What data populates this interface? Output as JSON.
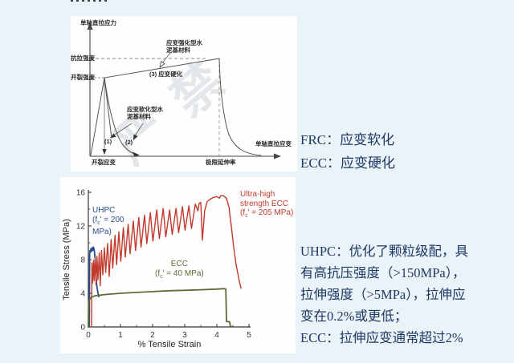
{
  "colors": {
    "background": "#e9f3f8",
    "text_navy": "#1f3864",
    "uhpc_blue": "#2a4d8f",
    "ecc_red": "#c23a2c",
    "ecc_green": "#5e6b33",
    "diagram_line": "#444444"
  },
  "top_diagram": {
    "watermark": "严禁",
    "ylabel": "单轴直拉应力",
    "xlabel": "单轴直拉应变",
    "tensile_strength_label": "抗拉强度",
    "cracking_strength_label": "开裂强度",
    "hardening_material_line1": "应变强化型水",
    "hardening_material_line2": "泥基材料",
    "hardening_label": "(3) 应变硬化",
    "softening_material_line1": "应变软化型水",
    "softening_material_line2": "泥基材料",
    "curve1_label": "(1)",
    "curve2_label": "(2)",
    "cracking_strain_label": "开裂应变",
    "ultimate_elongation_label": "极限延伸率"
  },
  "side_notes": {
    "frc": "FRC：应变软化",
    "ecc": "ECC：应变硬化"
  },
  "body_text": {
    "lines": [
      "UHPC：优化了颗粒级配，具",
      "有高抗压强度（>150MPa），",
      "拉伸强度（>5MPa），拉伸应",
      "变在0.2%或更低；",
      "ECC：拉伸应变通常超过2%"
    ]
  },
  "chart_data": [
    {
      "type": "line",
      "title": "单轴直拉应力—应变示意图（无数值刻度）",
      "xlabel": "单轴直拉应变",
      "ylabel": "单轴直拉应力",
      "annotations": [
        "抗拉强度",
        "开裂强度",
        "(3) 应变硬化",
        "应变强化型水泥基材料",
        "应变软化型水泥基材料",
        "(1)",
        "(2)",
        "开裂应变",
        "极限延伸率"
      ],
      "series": [
        {
          "name": "应变硬化型 (3)",
          "points_norm": [
            [
              0,
              0
            ],
            [
              0.07,
              0.75
            ],
            [
              0.68,
              0.93
            ],
            [
              0.7,
              0.55
            ],
            [
              0.76,
              0.22
            ],
            [
              0.84,
              0.07
            ],
            [
              0.9,
              0.02
            ]
          ]
        },
        {
          "name": "应变软化型 (1)",
          "points_norm": [
            [
              0.07,
              0.75
            ],
            [
              0.11,
              0.05
            ]
          ]
        },
        {
          "name": "应变软化型 (2)",
          "points_norm": [
            [
              0.07,
              0.75
            ],
            [
              0.13,
              0.28
            ],
            [
              0.25,
              0.02
            ]
          ]
        }
      ]
    },
    {
      "type": "line",
      "xlabel": "% Tensile Strain",
      "ylabel": "Tensile Stress (MPa)",
      "xlim": [
        0,
        5
      ],
      "ylim": [
        0,
        16
      ],
      "x_ticks": [
        0,
        1,
        2,
        3,
        4,
        5
      ],
      "x_minor_ticks": [
        0.5,
        1.5,
        2.5,
        3.5,
        4.5
      ],
      "y_ticks": [
        0,
        4,
        8,
        12,
        16
      ],
      "y_minor_ticks": [
        2,
        6,
        10,
        14
      ],
      "grid": false,
      "legend_position": "inline-annotations",
      "series": [
        {
          "name": "UHPC (fc' = 200 MPa)",
          "color": "#2a4d8f",
          "label_lines": [
            "UHPC",
            "(fc' = 200",
            "MPa)"
          ],
          "points": [
            [
              0.03,
              0
            ],
            [
              0.04,
              8.6
            ],
            [
              0.05,
              9.1
            ],
            [
              0.07,
              8.9
            ],
            [
              0.08,
              9.3
            ],
            [
              0.1,
              9.0
            ],
            [
              0.12,
              9.4
            ],
            [
              0.14,
              9.1
            ],
            [
              0.16,
              9.5
            ],
            [
              0.18,
              9.2
            ],
            [
              0.2,
              8.6
            ],
            [
              0.23,
              6.8
            ],
            [
              0.26,
              5.0
            ],
            [
              0.3,
              4.0
            ],
            [
              0.33,
              3.6
            ]
          ]
        },
        {
          "name": "Ultra-high strength ECC (fc' = 205 MPa)",
          "color": "#c23a2c",
          "label_lines": [
            "Ultra-high",
            "strength ECC",
            "(fc' = 205 MPa)"
          ],
          "points": [
            [
              0.1,
              0
            ],
            [
              0.11,
              7.6
            ],
            [
              0.13,
              5.2
            ],
            [
              0.16,
              7.9
            ],
            [
              0.18,
              5.5
            ],
            [
              0.21,
              8.2
            ],
            [
              0.24,
              5.0
            ],
            [
              0.27,
              8.4
            ],
            [
              0.3,
              5.6
            ],
            [
              0.34,
              8.8
            ],
            [
              0.37,
              4.9
            ],
            [
              0.41,
              9.1
            ],
            [
              0.45,
              6.2
            ],
            [
              0.5,
              9.4
            ],
            [
              0.54,
              6.5
            ],
            [
              0.6,
              9.9
            ],
            [
              0.65,
              6.0
            ],
            [
              0.71,
              10.4
            ],
            [
              0.76,
              7.0
            ],
            [
              0.83,
              10.9
            ],
            [
              0.88,
              7.4
            ],
            [
              0.95,
              11.3
            ],
            [
              1.01,
              7.8
            ],
            [
              1.09,
              11.8
            ],
            [
              1.15,
              8.3
            ],
            [
              1.24,
              12.2
            ],
            [
              1.3,
              8.7
            ],
            [
              1.4,
              12.6
            ],
            [
              1.47,
              9.1
            ],
            [
              1.57,
              13.0
            ],
            [
              1.64,
              9.5
            ],
            [
              1.75,
              13.3
            ],
            [
              1.82,
              9.9
            ],
            [
              1.93,
              13.6
            ],
            [
              2.01,
              10.2
            ],
            [
              2.13,
              13.9
            ],
            [
              2.21,
              10.5
            ],
            [
              2.33,
              14.1
            ],
            [
              2.41,
              10.7
            ],
            [
              2.53,
              13.9
            ],
            [
              2.61,
              11.0
            ],
            [
              2.73,
              14.1
            ],
            [
              2.81,
              11.2
            ],
            [
              2.93,
              14.3
            ],
            [
              3.01,
              11.5
            ],
            [
              3.13,
              14.4
            ],
            [
              3.21,
              11.7
            ],
            [
              3.33,
              14.6
            ],
            [
              3.41,
              13.8
            ],
            [
              3.45,
              14.7
            ],
            [
              3.5,
              14.8
            ],
            [
              3.55,
              10.3
            ],
            [
              3.62,
              13.8
            ],
            [
              3.7,
              14.9
            ],
            [
              3.8,
              15.2
            ],
            [
              3.9,
              15.4
            ],
            [
              4.0,
              15.5
            ],
            [
              4.08,
              15.3
            ],
            [
              4.12,
              15.6
            ],
            [
              4.2,
              15.6
            ],
            [
              4.3,
              15.3
            ],
            [
              4.38,
              14.2
            ],
            [
              4.45,
              12.0
            ],
            [
              4.52,
              9.6
            ],
            [
              4.6,
              7.4
            ],
            [
              4.68,
              5.8
            ],
            [
              4.75,
              4.6
            ]
          ]
        },
        {
          "name": "ECC (fc' = 40 MPa)",
          "color": "#5e6b33",
          "label_lines": [
            "ECC",
            "(fc' = 40 MPa)"
          ],
          "points": [
            [
              0.0,
              0
            ],
            [
              0.01,
              2.9
            ],
            [
              0.03,
              3.2
            ],
            [
              0.08,
              3.5
            ],
            [
              0.2,
              3.7
            ],
            [
              0.5,
              3.85
            ],
            [
              1.0,
              4.0
            ],
            [
              1.5,
              4.1
            ],
            [
              2.0,
              4.2
            ],
            [
              2.5,
              4.3
            ],
            [
              3.0,
              4.35
            ],
            [
              3.5,
              4.42
            ],
            [
              4.0,
              4.5
            ],
            [
              4.22,
              4.55
            ],
            [
              4.28,
              4.5
            ],
            [
              4.3,
              0.65
            ],
            [
              4.4,
              0.6
            ],
            [
              4.42,
              0.05
            ],
            [
              4.48,
              0.05
            ]
          ]
        }
      ]
    }
  ]
}
